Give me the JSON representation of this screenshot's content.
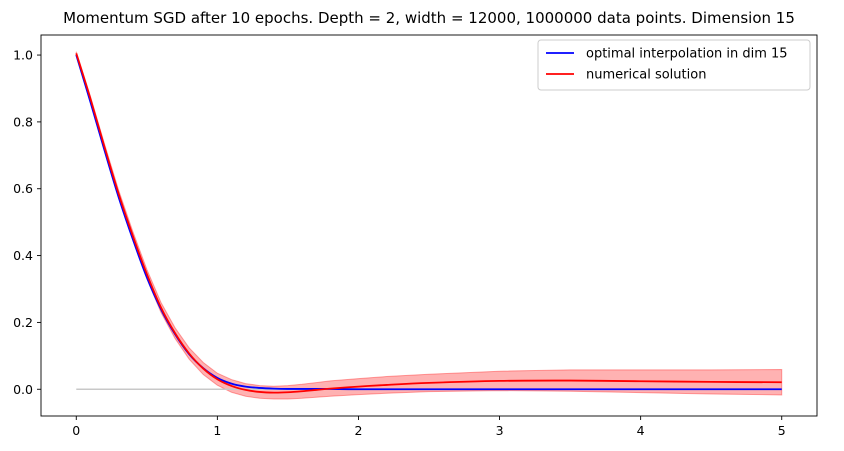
{
  "chart_data": {
    "type": "line",
    "title": "Momentum SGD after 10 epochs. Depth = 2, width = 12000, 1000000 data points. Dimension 15",
    "xlabel": "",
    "ylabel": "",
    "xlim": [
      -0.25,
      5.25
    ],
    "ylim": [
      -0.08,
      1.06
    ],
    "x_ticks": [
      0,
      1,
      2,
      3,
      4,
      5
    ],
    "x_tick_labels": [
      "0",
      "1",
      "2",
      "3",
      "4",
      "5"
    ],
    "y_ticks": [
      0.0,
      0.2,
      0.4,
      0.6,
      0.8,
      1.0
    ],
    "y_tick_labels": [
      "0.0",
      "0.2",
      "0.4",
      "0.6",
      "0.8",
      "1.0"
    ],
    "grid": false,
    "legend_position": "top-right",
    "series": [
      {
        "name": "optimal interpolation in dim 15",
        "color": "#0000ff",
        "x": [
          0,
          0.1,
          0.2,
          0.3,
          0.4,
          0.5,
          0.6,
          0.7,
          0.8,
          0.9,
          1.0,
          1.1,
          1.2,
          1.3,
          1.4,
          1.5,
          1.6,
          1.7,
          1.8,
          2.0,
          2.2,
          2.5,
          3.0,
          3.5,
          4.0,
          4.5,
          5.0
        ],
        "y": [
          1.0,
          0.86,
          0.715,
          0.575,
          0.45,
          0.335,
          0.24,
          0.165,
          0.105,
          0.063,
          0.034,
          0.017,
          0.008,
          0.004,
          0.002,
          0.001,
          0.001,
          0.001,
          0.001,
          0.0,
          0.0,
          0.0,
          0.0,
          0.0,
          0.0,
          0.0,
          0.0
        ]
      },
      {
        "name": "numerical solution",
        "color": "#ff0000",
        "x": [
          0,
          0.1,
          0.2,
          0.3,
          0.4,
          0.5,
          0.6,
          0.7,
          0.8,
          0.9,
          1.0,
          1.1,
          1.2,
          1.3,
          1.4,
          1.5,
          1.6,
          1.7,
          1.8,
          2.0,
          2.2,
          2.5,
          3.0,
          3.5,
          4.0,
          4.5,
          5.0
        ],
        "y": [
          1.005,
          0.87,
          0.725,
          0.585,
          0.46,
          0.345,
          0.245,
          0.168,
          0.107,
          0.062,
          0.03,
          0.01,
          -0.002,
          -0.008,
          -0.01,
          -0.009,
          -0.006,
          -0.002,
          0.002,
          0.008,
          0.013,
          0.019,
          0.025,
          0.026,
          0.024,
          0.022,
          0.021
        ]
      }
    ],
    "band": {
      "color": "#ff0000",
      "opacity": 0.3,
      "x": [
        0,
        0.1,
        0.2,
        0.3,
        0.4,
        0.5,
        0.6,
        0.7,
        0.8,
        0.9,
        1.0,
        1.1,
        1.2,
        1.3,
        1.4,
        1.5,
        1.6,
        1.7,
        1.8,
        2.0,
        2.2,
        2.5,
        3.0,
        3.5,
        4.0,
        4.5,
        5.0
      ],
      "lower": [
        1.0,
        0.863,
        0.716,
        0.574,
        0.447,
        0.331,
        0.23,
        0.152,
        0.09,
        0.044,
        0.012,
        -0.009,
        -0.021,
        -0.027,
        -0.029,
        -0.029,
        -0.027,
        -0.024,
        -0.021,
        -0.016,
        -0.012,
        -0.007,
        -0.004,
        -0.006,
        -0.01,
        -0.014,
        -0.017
      ],
      "upper": [
        1.01,
        0.877,
        0.734,
        0.596,
        0.473,
        0.359,
        0.26,
        0.184,
        0.124,
        0.08,
        0.048,
        0.029,
        0.017,
        0.011,
        0.009,
        0.011,
        0.015,
        0.02,
        0.025,
        0.032,
        0.038,
        0.045,
        0.054,
        0.058,
        0.058,
        0.058,
        0.059
      ]
    },
    "baseline": {
      "y": 0.0,
      "x_start": 0,
      "x_end": 2.5,
      "color": "#c8c8c8"
    }
  }
}
